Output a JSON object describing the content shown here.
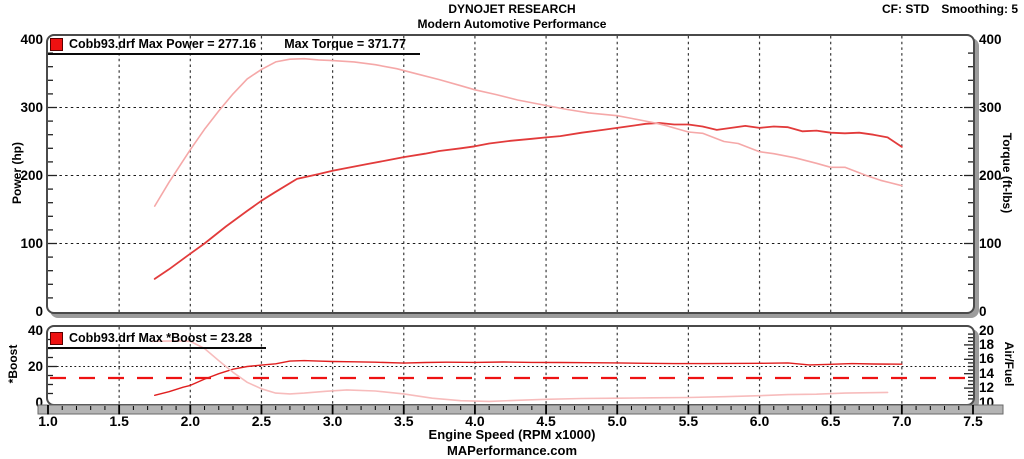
{
  "header": {
    "title": "DYNOJET RESEARCH",
    "subtitle": "Modern Automotive Performance",
    "correction": "CF: STD",
    "smoothing": "Smoothing: 5"
  },
  "footer": {
    "site": "MAPerformance.com"
  },
  "colors": {
    "grid": "#3a3a3a",
    "h_grid": "#1a1a1a",
    "edge_tick": "#222222",
    "panel_border": "#4a4a4a",
    "panel_shadow": "#9c9c9c",
    "strip_bg": "#b4b4b4",
    "strip_border": "#6a6a6a",
    "tick_mark": "#000000"
  },
  "x_axis": {
    "label": "Engine Speed (RPM x1000)",
    "lim": [
      1.0,
      7.5
    ],
    "major_step": 0.5,
    "minor_step": 0.1,
    "tick_labels": [
      "1.0",
      "1.5",
      "2.0",
      "2.5",
      "3.0",
      "3.5",
      "4.0",
      "4.5",
      "5.0",
      "5.5",
      "6.0",
      "6.5",
      "7.0",
      "7.5"
    ]
  },
  "chart_data": [
    {
      "type": "line",
      "x_label": "Engine Speed (RPM x1000)",
      "xlim": [
        1.0,
        7.5
      ],
      "grid": "dashed",
      "legend": [
        "Cobb93.drf Max Power = 277.16",
        "Max Torque = 371.77"
      ],
      "legend_swatch_color": "#ee1111",
      "source_file": "Cobb93.drf",
      "left_axis": {
        "label": "Power (hp)",
        "lim": [
          0,
          400
        ],
        "tick_labels": [
          "400",
          "300",
          "200",
          "100",
          "0"
        ],
        "major_step": 100,
        "minor_step": 20
      },
      "right_axis": {
        "label": "Torque (ft-lbs)",
        "lim": [
          0,
          400
        ],
        "tick_labels": [
          "400",
          "300",
          "200",
          "100",
          "0"
        ],
        "major_step": 100,
        "minor_step": 20
      },
      "h_gridlines": [
        100,
        200,
        300
      ],
      "series": [
        {
          "name": "Power",
          "axis": "left",
          "max": 277.16,
          "color": "#e23b3b",
          "width": 1.8,
          "points": [
            [
              1.75,
              48
            ],
            [
              1.85,
              62
            ],
            [
              2.0,
              85
            ],
            [
              2.1,
              100
            ],
            [
              2.25,
              125
            ],
            [
              2.4,
              148
            ],
            [
              2.5,
              163
            ],
            [
              2.6,
              176
            ],
            [
              2.75,
              195
            ],
            [
              2.9,
              202
            ],
            [
              3.0,
              207
            ],
            [
              3.1,
              211
            ],
            [
              3.25,
              217
            ],
            [
              3.4,
              223
            ],
            [
              3.5,
              227
            ],
            [
              3.65,
              232
            ],
            [
              3.75,
              236
            ],
            [
              3.9,
              240
            ],
            [
              4.0,
              243
            ],
            [
              4.1,
              247
            ],
            [
              4.25,
              251
            ],
            [
              4.4,
              254
            ],
            [
              4.5,
              256
            ],
            [
              4.6,
              258
            ],
            [
              4.75,
              263
            ],
            [
              4.9,
              267
            ],
            [
              5.0,
              270
            ],
            [
              5.1,
              273
            ],
            [
              5.2,
              276
            ],
            [
              5.3,
              277.16
            ],
            [
              5.4,
              275
            ],
            [
              5.5,
              275
            ],
            [
              5.6,
              272
            ],
            [
              5.7,
              267
            ],
            [
              5.8,
              270
            ],
            [
              5.9,
              273
            ],
            [
              6.0,
              270
            ],
            [
              6.1,
              272
            ],
            [
              6.2,
              271
            ],
            [
              6.3,
              265
            ],
            [
              6.4,
              266
            ],
            [
              6.5,
              263
            ],
            [
              6.6,
              262
            ],
            [
              6.7,
              263
            ],
            [
              6.8,
              260
            ],
            [
              6.9,
              256
            ],
            [
              7.0,
              242
            ]
          ]
        },
        {
          "name": "Torque",
          "axis": "right",
          "max": 371.77,
          "color": "#f5a8a8",
          "width": 1.6,
          "points": [
            [
              1.75,
              155
            ],
            [
              1.85,
              190
            ],
            [
              2.0,
              238
            ],
            [
              2.1,
              268
            ],
            [
              2.2,
              295
            ],
            [
              2.3,
              320
            ],
            [
              2.4,
              342
            ],
            [
              2.5,
              356
            ],
            [
              2.6,
              367
            ],
            [
              2.7,
              371
            ],
            [
              2.8,
              371.77
            ],
            [
              2.9,
              370
            ],
            [
              3.0,
              369
            ],
            [
              3.15,
              367
            ],
            [
              3.3,
              363
            ],
            [
              3.45,
              357
            ],
            [
              3.6,
              349
            ],
            [
              3.75,
              341
            ],
            [
              3.9,
              332
            ],
            [
              4.0,
              326
            ],
            [
              4.15,
              319
            ],
            [
              4.3,
              311
            ],
            [
              4.45,
              305
            ],
            [
              4.5,
              303
            ],
            [
              4.65,
              297
            ],
            [
              4.8,
              292
            ],
            [
              5.0,
              288
            ],
            [
              5.1,
              284
            ],
            [
              5.25,
              278
            ],
            [
              5.35,
              273
            ],
            [
              5.5,
              264
            ],
            [
              5.6,
              262
            ],
            [
              5.75,
              250
            ],
            [
              5.85,
              247
            ],
            [
              6.0,
              235
            ],
            [
              6.1,
              232
            ],
            [
              6.25,
              226
            ],
            [
              6.4,
              218
            ],
            [
              6.5,
              212
            ],
            [
              6.6,
              212
            ],
            [
              6.75,
              200
            ],
            [
              6.85,
              193
            ],
            [
              7.0,
              185
            ]
          ]
        }
      ]
    },
    {
      "type": "line",
      "x_label": "Engine Speed (RPM x1000)",
      "xlim": [
        1.0,
        7.5
      ],
      "grid": "dashed",
      "legend": [
        "Cobb93.drf Max *Boost = 23.28"
      ],
      "legend_swatch_color": "#ee1111",
      "source_file": "Cobb93.drf",
      "left_axis": {
        "label": "*Boost",
        "lim": [
          0,
          40
        ],
        "tick_labels": [
          "40",
          "20",
          "0"
        ],
        "major_step": 20,
        "minor_step": 5
      },
      "right_axis": {
        "label": "Air/Fuel",
        "lim": [
          10,
          20
        ],
        "tick_labels": [
          "20",
          "18",
          "16",
          "14",
          "12",
          "10"
        ],
        "major_step": 2,
        "minor_step": 0.5
      },
      "h_gridlines": [
        20
      ],
      "reference_line": {
        "axis": "right",
        "value": 13.4,
        "style": "long-dash",
        "color": "#ee1212"
      },
      "series": [
        {
          "name": "*Boost",
          "axis": "left",
          "max": 23.28,
          "color": "#e01f1f",
          "width": 1.4,
          "points": [
            [
              1.75,
              4
            ],
            [
              1.85,
              6
            ],
            [
              1.95,
              8.5
            ],
            [
              2.0,
              9.5
            ],
            [
              2.1,
              13
            ],
            [
              2.2,
              16
            ],
            [
              2.3,
              18.5
            ],
            [
              2.4,
              20
            ],
            [
              2.5,
              20.8
            ],
            [
              2.6,
              21.5
            ],
            [
              2.7,
              23
            ],
            [
              2.8,
              23.28
            ],
            [
              2.9,
              23
            ],
            [
              3.0,
              22.8
            ],
            [
              3.15,
              22.6
            ],
            [
              3.3,
              22.4
            ],
            [
              3.5,
              21.9
            ],
            [
              3.65,
              22.2
            ],
            [
              3.8,
              22.4
            ],
            [
              4.0,
              22.3
            ],
            [
              4.2,
              22.5
            ],
            [
              4.4,
              22.3
            ],
            [
              4.6,
              22.2
            ],
            [
              4.8,
              22.1
            ],
            [
              5.0,
              22.0
            ],
            [
              5.2,
              21.8
            ],
            [
              5.4,
              21.6
            ],
            [
              5.6,
              21.6
            ],
            [
              5.8,
              21.7
            ],
            [
              6.0,
              21.8
            ],
            [
              6.2,
              22.0
            ],
            [
              6.35,
              20.9
            ],
            [
              6.5,
              21.2
            ],
            [
              6.65,
              21.6
            ],
            [
              6.8,
              21.4
            ],
            [
              7.0,
              21.3
            ]
          ]
        },
        {
          "name": "Air/Fuel",
          "axis": "right",
          "color": "#f7bcbc",
          "width": 1.6,
          "points": [
            [
              1.73,
              18.5
            ],
            [
              1.9,
              18.55
            ],
            [
              2.0,
              18.5
            ],
            [
              2.1,
              17.5
            ],
            [
              2.2,
              15.8
            ],
            [
              2.3,
              14.2
            ],
            [
              2.4,
              12.8
            ],
            [
              2.5,
              11.9
            ],
            [
              2.6,
              11.3
            ],
            [
              2.7,
              11.2
            ],
            [
              2.8,
              11.3
            ],
            [
              2.95,
              11.55
            ],
            [
              3.1,
              11.75
            ],
            [
              3.3,
              11.6
            ],
            [
              3.5,
              11.2
            ],
            [
              3.7,
              10.6
            ],
            [
              3.9,
              10.25
            ],
            [
              4.1,
              10.15
            ],
            [
              4.3,
              10.3
            ],
            [
              4.5,
              10.45
            ],
            [
              4.75,
              10.55
            ],
            [
              5.0,
              10.6
            ],
            [
              5.25,
              10.65
            ],
            [
              5.5,
              10.7
            ],
            [
              5.75,
              10.8
            ],
            [
              6.0,
              10.95
            ],
            [
              6.2,
              11.1
            ],
            [
              6.4,
              11.15
            ],
            [
              6.6,
              11.3
            ],
            [
              6.9,
              11.4
            ]
          ]
        }
      ]
    }
  ]
}
